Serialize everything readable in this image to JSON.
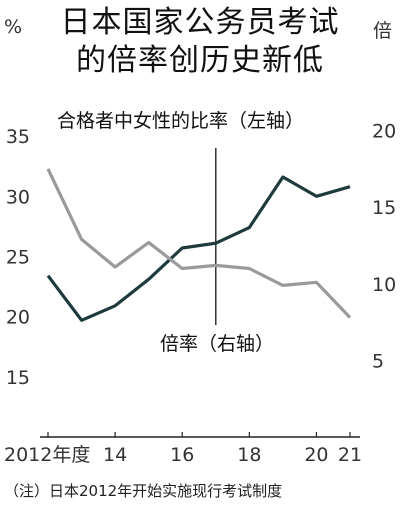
{
  "title_line1": "日本国家公务员考试",
  "title_line2": "的倍率创历史新低",
  "note": "（注）日本2012年开始实施现行考试制度",
  "chart_data": {
    "type": "line",
    "x": [
      2012,
      2013,
      2014,
      2015,
      2016,
      2017,
      2018,
      2019,
      2020,
      2021
    ],
    "x_tick_labels": [
      {
        "x": 2012,
        "label": "2012年度"
      },
      {
        "x": 2014,
        "label": "14"
      },
      {
        "x": 2016,
        "label": "16"
      },
      {
        "x": 2018,
        "label": "18"
      },
      {
        "x": 2020,
        "label": "20"
      },
      {
        "x": 2021,
        "label": "21"
      }
    ],
    "left_axis": {
      "unit": "%",
      "range": [
        10,
        38
      ],
      "ticks": [
        15,
        20,
        25,
        30,
        35
      ]
    },
    "right_axis": {
      "unit": "倍",
      "range": [
        0,
        22
      ],
      "ticks": [
        5,
        10,
        15,
        20
      ]
    },
    "series": [
      {
        "name": "合格者中女性的比率（左轴）",
        "axis": "left",
        "color": "#1f3a3d",
        "values": [
          23.4,
          19.7,
          20.9,
          23.1,
          25.7,
          26.1,
          27.4,
          31.6,
          30.0,
          30.8
        ]
      },
      {
        "name": "倍率（右轴）",
        "axis": "right",
        "color": "#9a9a9a",
        "values": [
          17.5,
          12.9,
          11.1,
          12.7,
          11.0,
          11.2,
          11.0,
          9.9,
          10.1,
          7.8
        ]
      }
    ],
    "annotation_line_x": 2017,
    "grid": false
  }
}
